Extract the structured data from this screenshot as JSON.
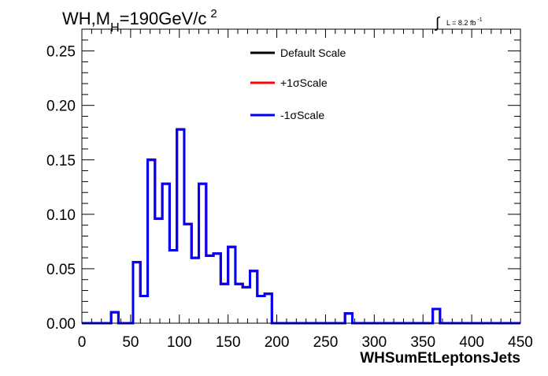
{
  "chart_data": {
    "type": "histogram",
    "title": {
      "prefix": "WH,M",
      "subscript": "H",
      "suffix": "=190GeV/c",
      "superscript": "2"
    },
    "lumi": {
      "symbol": "∫",
      "text": "L = 8.2 fb",
      "superscript": "-1"
    },
    "xlabel": "WHSumEtLeptonsJets",
    "ylabel": "",
    "xlim": [
      0,
      450
    ],
    "ylim": [
      0,
      0.27
    ],
    "x_ticks": [
      "0",
      "50",
      "100",
      "150",
      "200",
      "250",
      "300",
      "350",
      "400",
      "450"
    ],
    "y_ticks": [
      "0.00",
      "0.05",
      "0.10",
      "0.15",
      "0.20",
      "0.25"
    ],
    "bin_edges": [
      0,
      7.5,
      15,
      22.5,
      30,
      37.5,
      45,
      52.5,
      60,
      67.5,
      75,
      82.5,
      90,
      97.5,
      105,
      112.5,
      120,
      127.5,
      135,
      142.5,
      150,
      157.5,
      165,
      172.5,
      180,
      187.5,
      195,
      202.5,
      210,
      217.5,
      225,
      232.5,
      240,
      247.5,
      255,
      262.5,
      270,
      277.5,
      285,
      292.5,
      300,
      307.5,
      315,
      322.5,
      330,
      337.5,
      345,
      352.5,
      360,
      367.5,
      375,
      382.5,
      390,
      397.5,
      405,
      412.5,
      420,
      427.5,
      435,
      442.5,
      450
    ],
    "legend_position": "top-center",
    "series": [
      {
        "name": "Default Scale",
        "color": "#000000",
        "values": [
          0,
          0,
          0,
          0,
          0.01,
          0,
          0,
          0.056,
          0.025,
          0.15,
          0.096,
          0.128,
          0.067,
          0.178,
          0.091,
          0.06,
          0.128,
          0.062,
          0.064,
          0.036,
          0.07,
          0.036,
          0.033,
          0.048,
          0.025,
          0.027,
          0,
          0,
          0,
          0,
          0,
          0,
          0,
          0,
          0,
          0,
          0.009,
          0,
          0,
          0,
          0,
          0,
          0,
          0,
          0,
          0,
          0,
          0,
          0.013,
          0,
          0,
          0,
          0,
          0,
          0,
          0,
          0,
          0,
          0,
          0
        ]
      },
      {
        "name": "+1σScale",
        "color": "#ff0000",
        "values": [
          0,
          0,
          0,
          0,
          0.01,
          0,
          0,
          0.056,
          0.025,
          0.15,
          0.096,
          0.128,
          0.067,
          0.178,
          0.091,
          0.06,
          0.128,
          0.062,
          0.064,
          0.036,
          0.07,
          0.036,
          0.033,
          0.048,
          0.025,
          0.027,
          0,
          0,
          0,
          0,
          0,
          0,
          0,
          0,
          0,
          0,
          0.009,
          0,
          0,
          0,
          0,
          0,
          0,
          0,
          0,
          0,
          0,
          0,
          0.013,
          0,
          0,
          0,
          0,
          0,
          0,
          0,
          0,
          0,
          0,
          0
        ]
      },
      {
        "name": "-1σScale",
        "color": "#0000ff",
        "values": [
          0,
          0,
          0,
          0,
          0.01,
          0,
          0,
          0.056,
          0.025,
          0.15,
          0.096,
          0.128,
          0.067,
          0.178,
          0.091,
          0.06,
          0.128,
          0.062,
          0.064,
          0.036,
          0.07,
          0.036,
          0.033,
          0.048,
          0.025,
          0.027,
          0,
          0,
          0,
          0,
          0,
          0,
          0,
          0,
          0,
          0,
          0.009,
          0,
          0,
          0,
          0,
          0,
          0,
          0,
          0,
          0,
          0,
          0,
          0.013,
          0,
          0,
          0,
          0,
          0,
          0,
          0,
          0,
          0,
          0,
          0
        ]
      }
    ]
  }
}
